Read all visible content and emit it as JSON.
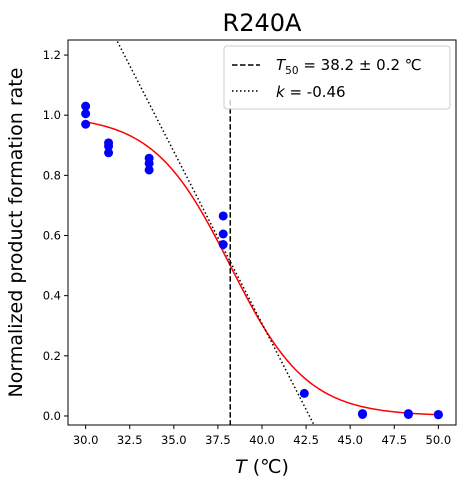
{
  "chart_data": {
    "type": "scatter",
    "title": "R240A",
    "xlabel": {
      "var": "T",
      "unit": " (℃)"
    },
    "ylabel": "Normalized product formation rate",
    "xlim": [
      29.0,
      51.0
    ],
    "ylim": [
      -0.03,
      1.25
    ],
    "xticks": [
      30.0,
      32.5,
      35.0,
      37.5,
      40.0,
      42.5,
      45.0,
      47.5,
      50.0
    ],
    "xtick_labels": [
      "30.0",
      "32.5",
      "35.0",
      "37.5",
      "40.0",
      "42.5",
      "45.0",
      "47.5",
      "50.0"
    ],
    "yticks": [
      0.0,
      0.2,
      0.4,
      0.6,
      0.8,
      1.0,
      1.2
    ],
    "ytick_labels": [
      "0.0",
      "0.2",
      "0.4",
      "0.6",
      "0.8",
      "1.0",
      "1.2"
    ],
    "grid": false,
    "legend_position": "top-right",
    "points": {
      "color": "#0000ff",
      "x": [
        30.0,
        30.0,
        30.0,
        31.3,
        31.3,
        31.3,
        33.6,
        33.6,
        33.6,
        37.8,
        37.8,
        37.8,
        42.4,
        45.7,
        45.7,
        48.3,
        48.3,
        50.0,
        50.0
      ],
      "y": [
        1.03,
        1.005,
        0.97,
        0.908,
        0.897,
        0.875,
        0.857,
        0.84,
        0.818,
        0.665,
        0.605,
        0.57,
        0.075,
        0.008,
        0.005,
        0.008,
        0.005,
        0.005,
        0.004
      ]
    },
    "fit": {
      "color": "#ff0000",
      "top": 1.0,
      "T50": 38.2,
      "k": -0.46
    },
    "vline": {
      "x": 38.2,
      "y_top": 1.05,
      "color": "#000000",
      "label_parts": [
        "T",
        "50",
        " = 38.2 ± 0.2 ℃"
      ]
    },
    "slope_line": {
      "x1": 31.8,
      "y1": 1.245,
      "x2": 42.95,
      "y2": -0.03,
      "color": "#000000",
      "label_parts": [
        "k",
        " = -0.46"
      ]
    }
  }
}
